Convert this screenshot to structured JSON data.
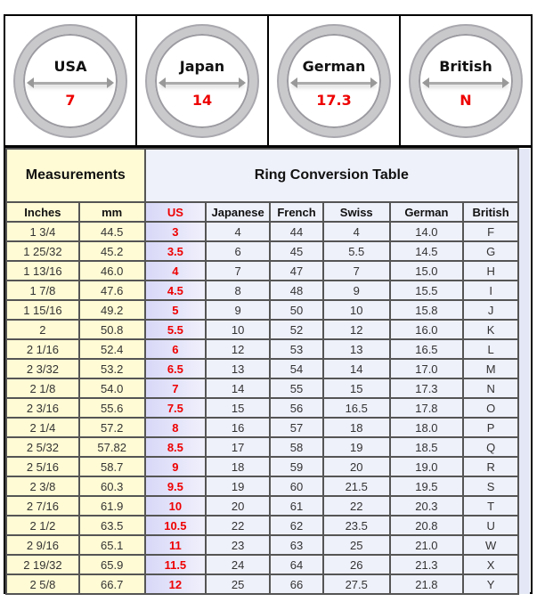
{
  "rings": [
    {
      "label": "USA",
      "value": "7"
    },
    {
      "label": "Japan",
      "value": "14"
    },
    {
      "label": "German",
      "value": "17.3"
    },
    {
      "label": "British",
      "value": "N"
    }
  ],
  "table": {
    "measurements_title": "Measurements",
    "conversion_title": "Ring Conversion Table",
    "columns": [
      "Inches",
      "mm",
      "US",
      "Japanese",
      "French",
      "Swiss",
      "German",
      "British"
    ],
    "rows": [
      [
        "1 3/4",
        "44.5",
        "3",
        "4",
        "44",
        "4",
        "14.0",
        "F"
      ],
      [
        "1 25/32",
        "45.2",
        "3.5",
        "6",
        "45",
        "5.5",
        "14.5",
        "G"
      ],
      [
        "1 13/16",
        "46.0",
        "4",
        "7",
        "47",
        "7",
        "15.0",
        "H"
      ],
      [
        "1 7/8",
        "47.6",
        "4.5",
        "8",
        "48",
        "9",
        "15.5",
        "I"
      ],
      [
        "1 15/16",
        "49.2",
        "5",
        "9",
        "50",
        "10",
        "15.8",
        "J"
      ],
      [
        "2",
        "50.8",
        "5.5",
        "10",
        "52",
        "12",
        "16.0",
        "K"
      ],
      [
        "2 1/16",
        "52.4",
        "6",
        "12",
        "53",
        "13",
        "16.5",
        "L"
      ],
      [
        "2 3/32",
        "53.2",
        "6.5",
        "13",
        "54",
        "14",
        "17.0",
        "M"
      ],
      [
        "2 1/8",
        "54.0",
        "7",
        "14",
        "55",
        "15",
        "17.3",
        "N"
      ],
      [
        "2 3/16",
        "55.6",
        "7.5",
        "15",
        "56",
        "16.5",
        "17.8",
        "O"
      ],
      [
        "2 1/4",
        "57.2",
        "8",
        "16",
        "57",
        "18",
        "18.0",
        "P"
      ],
      [
        "2 5/32",
        "57.82",
        "8.5",
        "17",
        "58",
        "19",
        "18.5",
        "Q"
      ],
      [
        "2 5/16",
        "58.7",
        "9",
        "18",
        "59",
        "20",
        "19.0",
        "R"
      ],
      [
        "2 3/8",
        "60.3",
        "9.5",
        "19",
        "60",
        "21.5",
        "19.5",
        "S"
      ],
      [
        "2 7/16",
        "61.9",
        "10",
        "20",
        "61",
        "22",
        "20.3",
        "T"
      ],
      [
        "2 1/2",
        "63.5",
        "10.5",
        "22",
        "62",
        "23.5",
        "20.8",
        "U"
      ],
      [
        "2 9/16",
        "65.1",
        "11",
        "23",
        "63",
        "25",
        "21.0",
        "W"
      ],
      [
        "2 19/32",
        "65.9",
        "11.5",
        "24",
        "64",
        "26",
        "21.3",
        "X"
      ],
      [
        "2 5/8",
        "66.7",
        "12",
        "25",
        "66",
        "27.5",
        "21.8",
        "Y"
      ]
    ]
  },
  "colors": {
    "us_text": "#ee0000",
    "measurements_bg": "#fffbd5",
    "conversion_bg": "#eef0fa"
  }
}
